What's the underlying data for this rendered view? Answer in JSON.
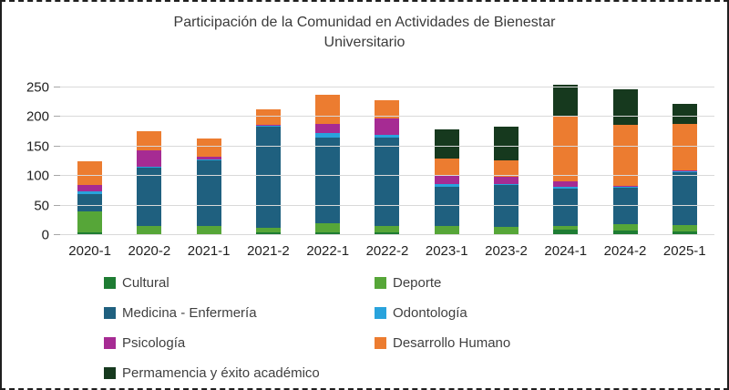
{
  "chart_data": {
    "type": "bar",
    "stacked": true,
    "title": "Participación de la Comunidad en Actividades de Bienestar Universitario",
    "xlabel": "",
    "ylabel": "",
    "categories": [
      "2020-1",
      "2020-2",
      "2021-1",
      "2021-2",
      "2022-1",
      "2022-2",
      "2023-1",
      "2023-2",
      "2024-1",
      "2024-2",
      "2025-1"
    ],
    "series": [
      {
        "name": "Cultural",
        "color": "#1E7C33",
        "values": [
          5,
          2,
          2,
          4,
          4,
          5,
          2,
          2,
          9,
          7,
          6
        ]
      },
      {
        "name": "Deporte",
        "color": "#56A638",
        "values": [
          35,
          13,
          14,
          8,
          16,
          11,
          13,
          12,
          7,
          12,
          11
        ]
      },
      {
        "name": "Medicina - Enfermería",
        "color": "#1F607F",
        "values": [
          30,
          99,
          111,
          172,
          145,
          149,
          66,
          71,
          62,
          61,
          89
        ]
      },
      {
        "name": "Odontología",
        "color": "#29A3DC",
        "values": [
          4,
          2,
          1,
          1,
          8,
          4,
          5,
          2,
          4,
          2,
          2
        ]
      },
      {
        "name": "Psicología",
        "color": "#A62B93",
        "values": [
          11,
          28,
          5,
          2,
          15,
          29,
          14,
          12,
          9,
          2,
          1
        ]
      },
      {
        "name": "Desarrollo Humano",
        "color": "#EC7C30",
        "values": [
          40,
          31,
          31,
          25,
          50,
          30,
          30,
          27,
          111,
          102,
          79
        ]
      },
      {
        "name": "Permamencia y éxito académico",
        "color": "#16391E",
        "values": [
          0,
          0,
          0,
          0,
          0,
          0,
          49,
          57,
          53,
          60,
          34
        ]
      }
    ],
    "totals": [
      125,
      175,
      164,
      212,
      238,
      228,
      179,
      183,
      255,
      246,
      222
    ],
    "y_ticks": [
      0,
      50,
      100,
      150,
      200,
      250
    ],
    "ylim": [
      0,
      265
    ],
    "grid": true,
    "gridline_color": "#d9d9d9",
    "legend_position": "bottom"
  }
}
